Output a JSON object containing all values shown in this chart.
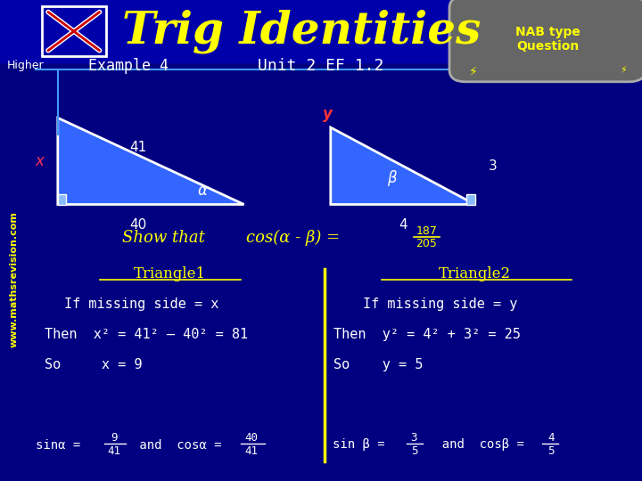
{
  "bg_color": "#000080",
  "title": "Trig Identities",
  "title_color": "#ffff00",
  "title_fontsize": 36,
  "nab_text": "NAB type\nQuestion",
  "nab_bg": "#555555",
  "higher_text": "Higher",
  "example_text": "Example 4",
  "unit_text": "Unit 2 EF 1.2",
  "watermark": "www.mathsrevision.com",
  "tri_color": "#3366ff",
  "tri_edge": "white",
  "show_that": "Show that",
  "cos_expr": "cos(α - β) = ",
  "fraction_num": "187",
  "fraction_den": "205",
  "triangle1_header": "Triangle1",
  "triangle2_header": "Triangle2",
  "t1_line1": "If missing side = x",
  "t1_line2": "Then  x² = 41² – 40² = 81",
  "t1_line3": "So     x = 9",
  "t2_line1": "If missing side = y",
  "t2_line2": "Then  y² = 4² + 3² = 25",
  "t2_line3": "So    y = 5",
  "text_color": "white",
  "yellow": "#ffff00",
  "divider_color": "#ffff00",
  "header_color": "#ffff00"
}
